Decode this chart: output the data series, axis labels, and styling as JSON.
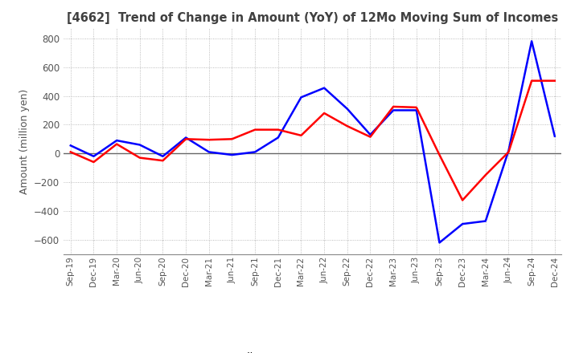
{
  "title": "[4662]  Trend of Change in Amount (YoY) of 12Mo Moving Sum of Incomes",
  "ylabel": "Amount (million yen)",
  "ylim": [
    -700,
    870
  ],
  "yticks": [
    -600,
    -400,
    -200,
    0,
    200,
    400,
    600,
    800
  ],
  "x_labels": [
    "Sep-19",
    "Dec-19",
    "Mar-20",
    "Jun-20",
    "Sep-20",
    "Dec-20",
    "Mar-21",
    "Jun-21",
    "Sep-21",
    "Dec-21",
    "Mar-22",
    "Jun-22",
    "Sep-22",
    "Dec-22",
    "Mar-23",
    "Jun-23",
    "Sep-23",
    "Dec-23",
    "Mar-24",
    "Jun-24",
    "Sep-24",
    "Dec-24"
  ],
  "ordinary_income": [
    55,
    -20,
    90,
    60,
    -20,
    110,
    10,
    -10,
    10,
    110,
    390,
    455,
    310,
    130,
    300,
    300,
    -620,
    -490,
    -470,
    20,
    780,
    120
  ],
  "net_income": [
    10,
    -60,
    65,
    -30,
    -50,
    100,
    95,
    100,
    165,
    165,
    125,
    280,
    190,
    115,
    325,
    320,
    -10,
    -325,
    -150,
    10,
    505,
    505
  ],
  "ordinary_income_color": "#0000FF",
  "net_income_color": "#FF0000",
  "line_width": 1.8,
  "grid_color": "#AAAAAA",
  "grid_style": "dotted",
  "title_color": "#404040",
  "tick_color": "#555555"
}
